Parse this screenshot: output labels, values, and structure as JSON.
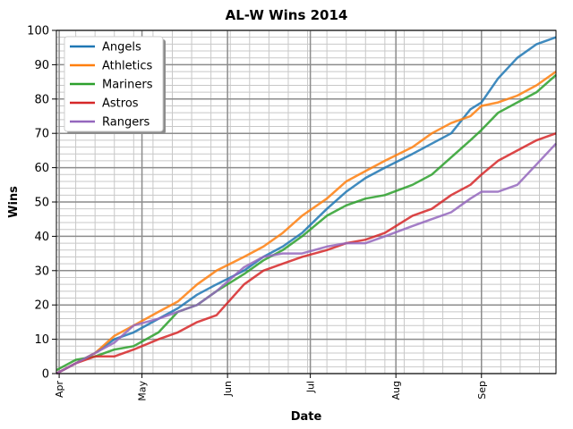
{
  "chart_data": {
    "type": "line",
    "title": "AL-W Wins 2014",
    "xlabel": "Date",
    "ylabel": "Wins",
    "ylim": [
      0,
      100
    ],
    "xlim": [
      "2014-03-31",
      "2014-09-28"
    ],
    "yticks": [
      0,
      10,
      20,
      30,
      40,
      50,
      60,
      70,
      80,
      90,
      100
    ],
    "xticks": [
      {
        "label": "Apr",
        "date": "2014-04-01"
      },
      {
        "label": "May",
        "date": "2014-05-01"
      },
      {
        "label": "Jun",
        "date": "2014-06-01"
      },
      {
        "label": "Jul",
        "date": "2014-07-01"
      },
      {
        "label": "Aug",
        "date": "2014-08-01"
      },
      {
        "label": "Sep",
        "date": "2014-09-01"
      }
    ],
    "grid": {
      "major": true,
      "minor": true
    },
    "legend": {
      "placement": "upper-left"
    },
    "series": [
      {
        "name": "Angels",
        "color": "#1f77b4",
        "points": [
          [
            "2014-03-31",
            0
          ],
          [
            "2014-04-07",
            3
          ],
          [
            "2014-04-14",
            6
          ],
          [
            "2014-04-21",
            10
          ],
          [
            "2014-04-28",
            12
          ],
          [
            "2014-05-07",
            16
          ],
          [
            "2014-05-14",
            19
          ],
          [
            "2014-05-21",
            23
          ],
          [
            "2014-05-28",
            26
          ],
          [
            "2014-06-07",
            30
          ],
          [
            "2014-06-14",
            34
          ],
          [
            "2014-06-21",
            37
          ],
          [
            "2014-06-28",
            41
          ],
          [
            "2014-07-07",
            48
          ],
          [
            "2014-07-14",
            53
          ],
          [
            "2014-07-21",
            57
          ],
          [
            "2014-07-28",
            60
          ],
          [
            "2014-08-07",
            64
          ],
          [
            "2014-08-14",
            67
          ],
          [
            "2014-08-21",
            70
          ],
          [
            "2014-08-28",
            77
          ],
          [
            "2014-09-01",
            79
          ],
          [
            "2014-09-07",
            86
          ],
          [
            "2014-09-14",
            92
          ],
          [
            "2014-09-21",
            96
          ],
          [
            "2014-09-28",
            98
          ]
        ]
      },
      {
        "name": "Athletics",
        "color": "#ff7f0e",
        "points": [
          [
            "2014-03-31",
            0
          ],
          [
            "2014-04-07",
            3
          ],
          [
            "2014-04-14",
            6
          ],
          [
            "2014-04-21",
            11
          ],
          [
            "2014-04-28",
            14
          ],
          [
            "2014-05-07",
            18
          ],
          [
            "2014-05-14",
            21
          ],
          [
            "2014-05-21",
            26
          ],
          [
            "2014-05-28",
            30
          ],
          [
            "2014-06-07",
            34
          ],
          [
            "2014-06-14",
            37
          ],
          [
            "2014-06-21",
            41
          ],
          [
            "2014-06-28",
            46
          ],
          [
            "2014-07-07",
            51
          ],
          [
            "2014-07-14",
            56
          ],
          [
            "2014-07-21",
            59
          ],
          [
            "2014-07-28",
            62
          ],
          [
            "2014-08-07",
            66
          ],
          [
            "2014-08-14",
            70
          ],
          [
            "2014-08-21",
            73
          ],
          [
            "2014-08-28",
            75
          ],
          [
            "2014-09-01",
            78
          ],
          [
            "2014-09-07",
            79
          ],
          [
            "2014-09-14",
            81
          ],
          [
            "2014-09-21",
            84
          ],
          [
            "2014-09-28",
            88
          ]
        ]
      },
      {
        "name": "Mariners",
        "color": "#2ca02c",
        "points": [
          [
            "2014-03-31",
            1
          ],
          [
            "2014-04-07",
            4
          ],
          [
            "2014-04-14",
            5
          ],
          [
            "2014-04-21",
            7
          ],
          [
            "2014-04-28",
            8
          ],
          [
            "2014-05-07",
            12
          ],
          [
            "2014-05-14",
            18
          ],
          [
            "2014-05-21",
            20
          ],
          [
            "2014-05-28",
            24
          ],
          [
            "2014-06-07",
            29
          ],
          [
            "2014-06-14",
            33
          ],
          [
            "2014-06-21",
            36
          ],
          [
            "2014-06-28",
            40
          ],
          [
            "2014-07-07",
            46
          ],
          [
            "2014-07-14",
            49
          ],
          [
            "2014-07-21",
            51
          ],
          [
            "2014-07-28",
            52
          ],
          [
            "2014-08-07",
            55
          ],
          [
            "2014-08-14",
            58
          ],
          [
            "2014-08-21",
            63
          ],
          [
            "2014-08-28",
            68
          ],
          [
            "2014-09-01",
            71
          ],
          [
            "2014-09-07",
            76
          ],
          [
            "2014-09-14",
            79
          ],
          [
            "2014-09-21",
            82
          ],
          [
            "2014-09-28",
            87
          ]
        ]
      },
      {
        "name": "Astros",
        "color": "#d62728",
        "points": [
          [
            "2014-03-31",
            0
          ],
          [
            "2014-04-07",
            3
          ],
          [
            "2014-04-14",
            5
          ],
          [
            "2014-04-21",
            5
          ],
          [
            "2014-04-28",
            7
          ],
          [
            "2014-05-07",
            10
          ],
          [
            "2014-05-14",
            12
          ],
          [
            "2014-05-21",
            15
          ],
          [
            "2014-05-28",
            17
          ],
          [
            "2014-06-07",
            26
          ],
          [
            "2014-06-14",
            30
          ],
          [
            "2014-06-21",
            32
          ],
          [
            "2014-06-28",
            34
          ],
          [
            "2014-07-07",
            36
          ],
          [
            "2014-07-14",
            38
          ],
          [
            "2014-07-21",
            39
          ],
          [
            "2014-07-28",
            41
          ],
          [
            "2014-08-07",
            46
          ],
          [
            "2014-08-14",
            48
          ],
          [
            "2014-08-21",
            52
          ],
          [
            "2014-08-28",
            55
          ],
          [
            "2014-09-01",
            58
          ],
          [
            "2014-09-07",
            62
          ],
          [
            "2014-09-14",
            65
          ],
          [
            "2014-09-21",
            68
          ],
          [
            "2014-09-28",
            70
          ]
        ]
      },
      {
        "name": "Rangers",
        "color": "#9467bd",
        "points": [
          [
            "2014-03-31",
            0
          ],
          [
            "2014-04-07",
            3
          ],
          [
            "2014-04-14",
            6
          ],
          [
            "2014-04-21",
            9
          ],
          [
            "2014-04-28",
            14
          ],
          [
            "2014-05-07",
            16
          ],
          [
            "2014-05-14",
            18
          ],
          [
            "2014-05-21",
            20
          ],
          [
            "2014-05-28",
            24
          ],
          [
            "2014-06-07",
            31
          ],
          [
            "2014-06-14",
            34
          ],
          [
            "2014-06-21",
            35
          ],
          [
            "2014-06-28",
            35
          ],
          [
            "2014-07-07",
            37
          ],
          [
            "2014-07-14",
            38
          ],
          [
            "2014-07-21",
            38
          ],
          [
            "2014-07-28",
            40
          ],
          [
            "2014-08-07",
            43
          ],
          [
            "2014-08-14",
            45
          ],
          [
            "2014-08-21",
            47
          ],
          [
            "2014-08-28",
            51
          ],
          [
            "2014-09-01",
            53
          ],
          [
            "2014-09-07",
            53
          ],
          [
            "2014-09-14",
            55
          ],
          [
            "2014-09-21",
            61
          ],
          [
            "2014-09-28",
            67
          ]
        ]
      }
    ]
  }
}
